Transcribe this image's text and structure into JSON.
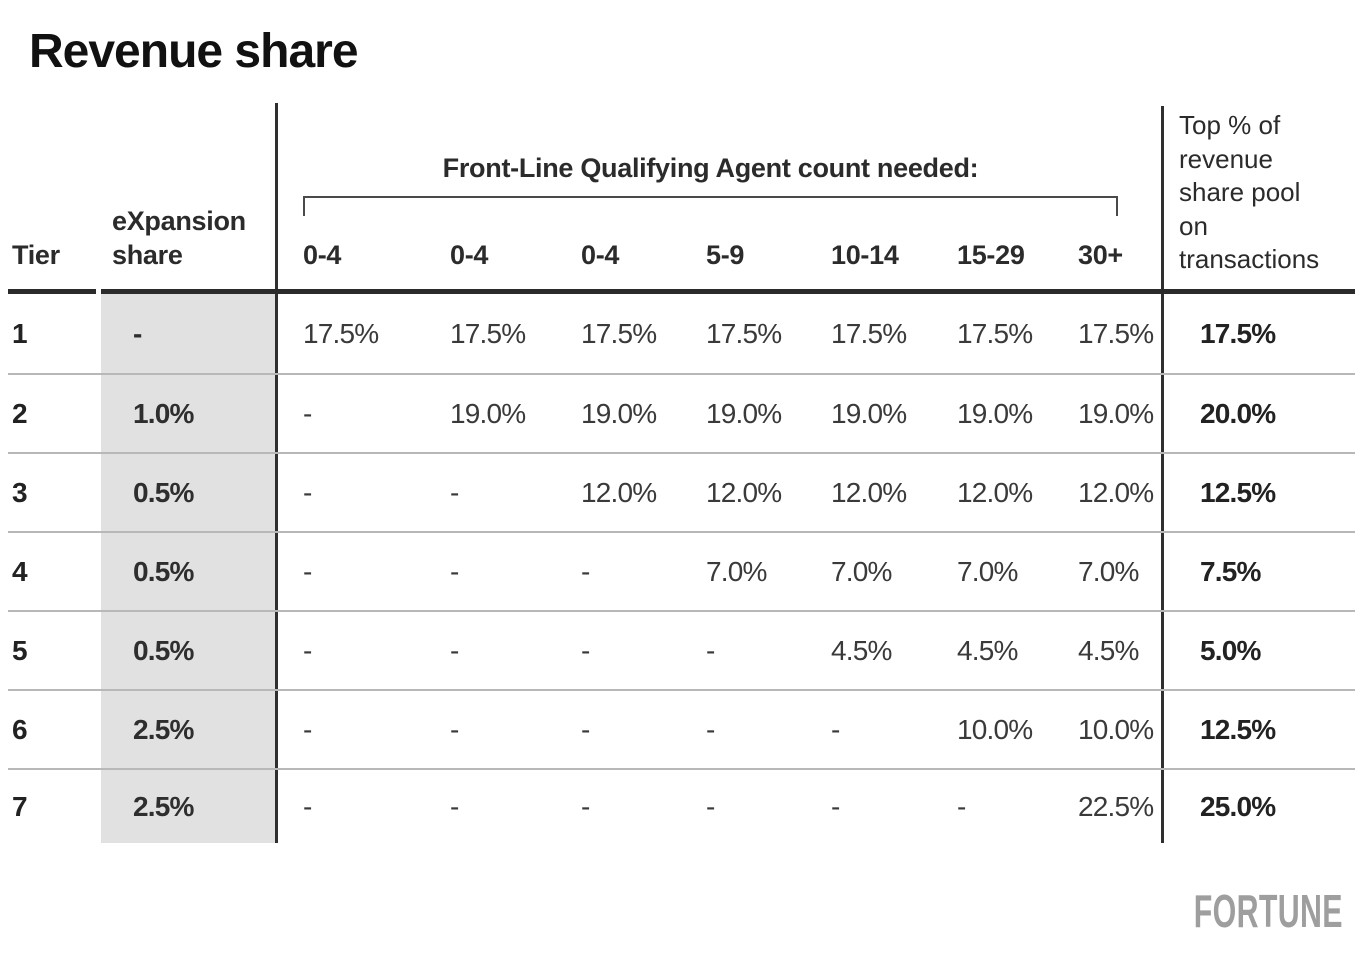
{
  "title": "Revenue share",
  "chart_data": {
    "type": "table",
    "title": "Revenue share",
    "agent_group_label": "Front-Line Qualifying Agent count needed:",
    "columns": [
      "Tier",
      "eXpansion share",
      "0-4",
      "0-4",
      "0-4",
      "5-9",
      "10-14",
      "15-29",
      "30+",
      "Top % of revenue share pool on transactions"
    ],
    "rows": [
      {
        "tier": "1",
        "expansion_share": "-",
        "agent_cells": [
          "17.5%",
          "17.5%",
          "17.5%",
          "17.5%",
          "17.5%",
          "17.5%",
          "17.5%"
        ],
        "top_pool": "17.5%"
      },
      {
        "tier": "2",
        "expansion_share": "1.0%",
        "agent_cells": [
          "-",
          "19.0%",
          "19.0%",
          "19.0%",
          "19.0%",
          "19.0%",
          "19.0%"
        ],
        "top_pool": "20.0%"
      },
      {
        "tier": "3",
        "expansion_share": "0.5%",
        "agent_cells": [
          "-",
          "-",
          "12.0%",
          "12.0%",
          "12.0%",
          "12.0%",
          "12.0%"
        ],
        "top_pool": "12.5%"
      },
      {
        "tier": "4",
        "expansion_share": "0.5%",
        "agent_cells": [
          "-",
          "-",
          "-",
          "7.0%",
          "7.0%",
          "7.0%",
          "7.0%"
        ],
        "top_pool": "7.5%"
      },
      {
        "tier": "5",
        "expansion_share": "0.5%",
        "agent_cells": [
          "-",
          "-",
          "-",
          "-",
          "4.5%",
          "4.5%",
          "4.5%"
        ],
        "top_pool": "5.0%"
      },
      {
        "tier": "6",
        "expansion_share": "2.5%",
        "agent_cells": [
          "-",
          "-",
          "-",
          "-",
          "-",
          "10.0%",
          "10.0%"
        ],
        "top_pool": "12.5%"
      },
      {
        "tier": "7",
        "expansion_share": "2.5%",
        "agent_cells": [
          "-",
          "-",
          "-",
          "-",
          "-",
          "-",
          "22.5%"
        ],
        "top_pool": "25.0%"
      }
    ]
  },
  "header": {
    "tier_label": "Tier",
    "expansion_lines": [
      "eXpansion",
      "share"
    ],
    "agent_columns": [
      "0-4",
      "0-4",
      "0-4",
      "5-9",
      "10-14",
      "15-29",
      "30+"
    ],
    "group_label": "Front-Line Qualifying Agent count needed:",
    "top_pool_lines": [
      "Top % of",
      "revenue",
      "share pool",
      "on",
      "transactions"
    ]
  },
  "branding": {
    "logo_text": "FORTUNE"
  },
  "colors": {
    "background": "#ffffff",
    "title_text": "#111111",
    "header_text": "#2b2b2b",
    "body_text": "#3a3a3a",
    "band_fill": "#e1e1e1",
    "rule_heavy": "#2b2b2b",
    "rule_light": "#b8b8b8",
    "divider": "#2f2f2f",
    "logo_gray": "#9e9e9e"
  }
}
